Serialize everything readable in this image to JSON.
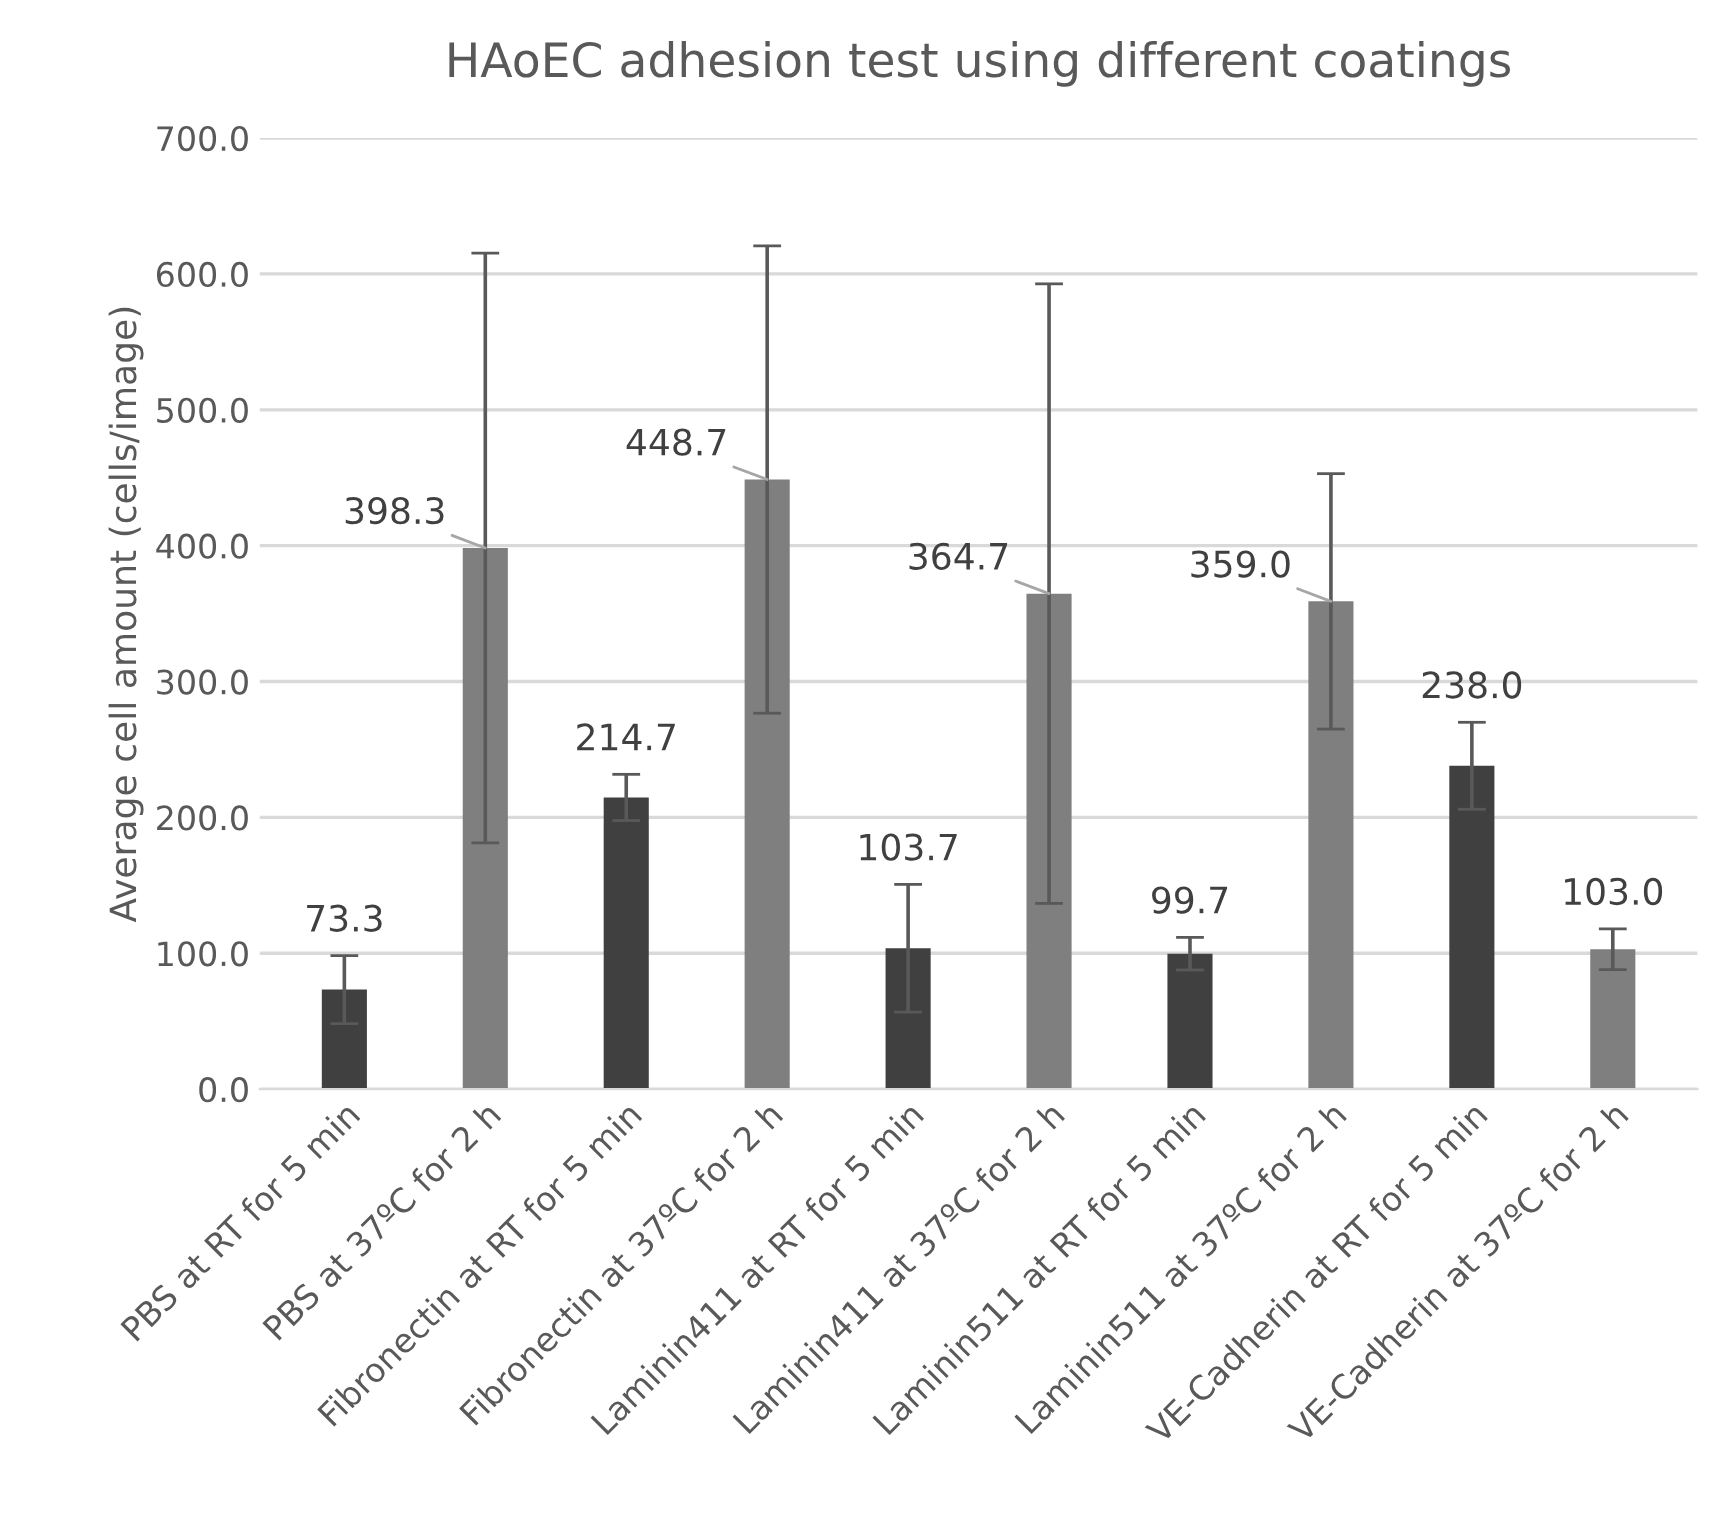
{
  "chart_data": {
    "type": "bar",
    "title": "HAoEC adhesion test using different coatings",
    "ylabel": "Average cell amount (cells/image)",
    "categories": [
      "PBS at RT for 5 min",
      "PBS at 37ºC for 2 h",
      "Fibronectin at RT for 5 min",
      "Fibronectin at 37ºC for 2 h",
      "Laminin411 at RT for 5 min",
      "Laminin411 at 37ºC for 2 h",
      "Laminin511 at RT for 5 min",
      "Laminin511 at 37ºC for 2 h",
      "VE-Cadherin at RT for 5 min",
      "VE-Cadherin at 37ºC for 2 h"
    ],
    "values": [
      73.3,
      398.3,
      214.7,
      448.7,
      103.7,
      364.7,
      99.7,
      359.0,
      238.0,
      103.0
    ],
    "value_labels": [
      "73.3",
      "398.3",
      "214.7",
      "448.7",
      "103.7",
      "364.7",
      "99.7",
      "359.0",
      "238.0",
      "103.0"
    ],
    "errors": [
      25,
      217,
      17,
      172,
      47,
      228,
      12,
      94,
      32,
      15
    ],
    "colors": [
      "#404040",
      "#7f7f7f",
      "#404040",
      "#7f7f7f",
      "#404040",
      "#7f7f7f",
      "#404040",
      "#7f7f7f",
      "#404040",
      "#7f7f7f"
    ],
    "ylim": [
      0,
      700
    ],
    "yticks": [
      {
        "value": 0,
        "label": "0.0"
      },
      {
        "value": 100,
        "label": "100.0"
      },
      {
        "value": 200,
        "label": "200.0"
      },
      {
        "value": 300,
        "label": "300.0"
      },
      {
        "value": 400,
        "label": "400.0"
      },
      {
        "value": 500,
        "label": "500.0"
      },
      {
        "value": 600,
        "label": "600.0"
      },
      {
        "value": 700,
        "label": "700.0"
      }
    ],
    "grid": "y",
    "legend": false
  }
}
